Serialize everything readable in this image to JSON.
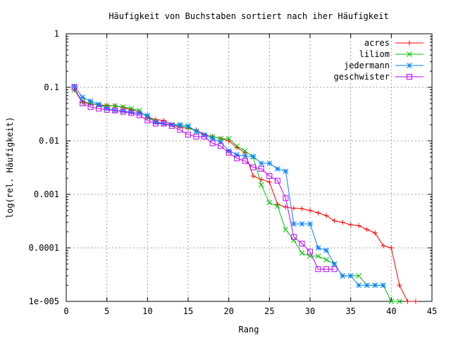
{
  "chart_data": {
    "type": "line",
    "title": "Häufigkeit von Buchstaben sortiert nach iher Häufigkeit",
    "xlabel": "Rang",
    "ylabel": "log(rel. Häufigkeit)",
    "xlim": [
      0,
      45
    ],
    "ylim": [
      1e-05,
      1
    ],
    "yscale": "log",
    "grid": true,
    "legend_position": "top-right",
    "x_ticks": [
      {
        "value": 0,
        "label": "0"
      },
      {
        "value": 5,
        "label": "5"
      },
      {
        "value": 10,
        "label": "10"
      },
      {
        "value": 15,
        "label": "15"
      },
      {
        "value": 20,
        "label": "20"
      },
      {
        "value": 25,
        "label": "25"
      },
      {
        "value": 30,
        "label": "30"
      },
      {
        "value": 35,
        "label": "35"
      },
      {
        "value": 40,
        "label": "40"
      },
      {
        "value": 45,
        "label": "45"
      }
    ],
    "y_ticks": [
      {
        "value": 1,
        "label": "1"
      },
      {
        "value": 0.1,
        "label": "0.1"
      },
      {
        "value": 0.01,
        "label": "0.01"
      },
      {
        "value": 0.001,
        "label": "0.001"
      },
      {
        "value": 0.0001,
        "label": "0.0001"
      },
      {
        "value": 1e-05,
        "label": "1e-005"
      }
    ],
    "series": [
      {
        "name": "acres",
        "color": "#ff0000",
        "marker": "plus",
        "x": [
          1,
          2,
          3,
          4,
          5,
          6,
          7,
          8,
          9,
          10,
          11,
          12,
          13,
          14,
          15,
          16,
          17,
          18,
          19,
          20,
          21,
          22,
          23,
          24,
          25,
          26,
          27,
          28,
          29,
          30,
          31,
          32,
          33,
          34,
          35,
          36,
          37,
          38,
          39,
          40,
          41,
          42,
          43
        ],
        "y": [
          0.09,
          0.052,
          0.049,
          0.047,
          0.046,
          0.045,
          0.042,
          0.038,
          0.035,
          0.028,
          0.025,
          0.024,
          0.02,
          0.018,
          0.017,
          0.016,
          0.013,
          0.012,
          0.011,
          0.01,
          0.0075,
          0.006,
          0.0022,
          0.0019,
          0.0017,
          0.00065,
          0.00058,
          0.00055,
          0.00054,
          0.0005,
          0.00045,
          0.0004,
          0.00032,
          0.0003,
          0.00027,
          0.00026,
          0.00022,
          0.00019,
          0.00011,
          0.0001,
          2e-05,
          1e-05,
          1e-05
        ]
      },
      {
        "name": "liliom",
        "color": "#00c000",
        "marker": "x",
        "x": [
          1,
          2,
          3,
          4,
          5,
          6,
          7,
          8,
          9,
          10,
          11,
          12,
          13,
          14,
          15,
          16,
          17,
          18,
          19,
          20,
          21,
          22,
          23,
          24,
          25,
          26,
          27,
          28,
          29,
          30,
          31,
          32,
          33,
          34,
          35,
          36,
          37,
          38,
          39,
          40,
          41
        ],
        "y": [
          0.09,
          0.055,
          0.05,
          0.046,
          0.045,
          0.045,
          0.043,
          0.04,
          0.037,
          0.027,
          0.023,
          0.021,
          0.02,
          0.019,
          0.018,
          0.015,
          0.013,
          0.012,
          0.011,
          0.011,
          0.008,
          0.0065,
          0.005,
          0.0015,
          0.0007,
          0.0006,
          0.00022,
          0.00014,
          8e-05,
          7e-05,
          7e-05,
          6e-05,
          5e-05,
          3e-05,
          3e-05,
          3e-05,
          2e-05,
          2e-05,
          2e-05,
          1e-05,
          1e-05
        ]
      },
      {
        "name": "jedermann",
        "color": "#0080ff",
        "marker": "star",
        "x": [
          1,
          2,
          3,
          4,
          5,
          6,
          7,
          8,
          9,
          10,
          11,
          12,
          13,
          14,
          15,
          16,
          17,
          18,
          19,
          20,
          21,
          22,
          23,
          24,
          25,
          26,
          27,
          28,
          29,
          30,
          31,
          32,
          33,
          34,
          35,
          36,
          37,
          38,
          39
        ],
        "y": [
          0.105,
          0.065,
          0.055,
          0.048,
          0.04,
          0.037,
          0.036,
          0.034,
          0.033,
          0.03,
          0.022,
          0.021,
          0.02,
          0.02,
          0.019,
          0.015,
          0.013,
          0.011,
          0.0095,
          0.0065,
          0.0055,
          0.0052,
          0.0051,
          0.0038,
          0.0038,
          0.003,
          0.0027,
          0.00028,
          0.00028,
          0.00028,
          0.0001,
          9e-05,
          5e-05,
          3e-05,
          3e-05,
          2e-05,
          2e-05,
          2e-05,
          2e-05
        ]
      },
      {
        "name": "geschwister",
        "color": "#c000ff",
        "marker": "square",
        "x": [
          1,
          2,
          3,
          4,
          5,
          6,
          7,
          8,
          9,
          10,
          11,
          12,
          13,
          14,
          15,
          16,
          17,
          18,
          19,
          20,
          21,
          22,
          23,
          24,
          25,
          26,
          27,
          28,
          29,
          30,
          31,
          32,
          33
        ],
        "y": [
          0.1,
          0.05,
          0.043,
          0.04,
          0.038,
          0.037,
          0.035,
          0.033,
          0.03,
          0.024,
          0.021,
          0.021,
          0.019,
          0.016,
          0.013,
          0.012,
          0.012,
          0.009,
          0.008,
          0.006,
          0.0047,
          0.0042,
          0.0032,
          0.003,
          0.0022,
          0.0018,
          0.00085,
          0.00016,
          0.00012,
          8.5e-05,
          4e-05,
          4e-05,
          4e-05
        ]
      }
    ]
  }
}
